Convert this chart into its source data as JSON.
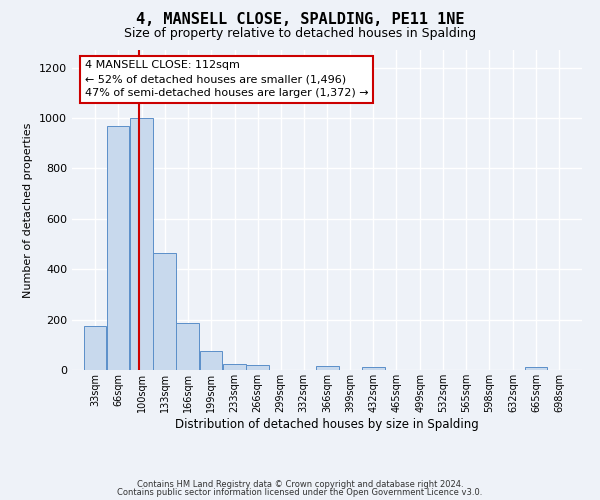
{
  "title": "4, MANSELL CLOSE, SPALDING, PE11 1NE",
  "subtitle": "Size of property relative to detached houses in Spalding",
  "xlabel": "Distribution of detached houses by size in Spalding",
  "ylabel": "Number of detached properties",
  "bin_labels": [
    "33sqm",
    "66sqm",
    "100sqm",
    "133sqm",
    "166sqm",
    "199sqm",
    "233sqm",
    "266sqm",
    "299sqm",
    "332sqm",
    "366sqm",
    "399sqm",
    "432sqm",
    "465sqm",
    "499sqm",
    "532sqm",
    "565sqm",
    "598sqm",
    "632sqm",
    "665sqm",
    "698sqm"
  ],
  "bin_edges": [
    33,
    66,
    100,
    133,
    166,
    199,
    233,
    266,
    299,
    332,
    366,
    399,
    432,
    465,
    499,
    532,
    565,
    598,
    632,
    665,
    698
  ],
  "bar_heights": [
    175,
    970,
    1000,
    465,
    185,
    75,
    25,
    20,
    0,
    0,
    15,
    0,
    10,
    0,
    0,
    0,
    0,
    0,
    0,
    10,
    0
  ],
  "bar_color": "#c8d9ed",
  "bar_edge_color": "#5b8fc9",
  "red_line_x": 112,
  "vline_color": "#cc0000",
  "annotation_line1": "4 MANSELL CLOSE: 112sqm",
  "annotation_line2": "← 52% of detached houses are smaller (1,496)",
  "annotation_line3": "47% of semi-detached houses are larger (1,372) →",
  "annotation_box_color": "#ffffff",
  "annotation_box_edge": "#cc0000",
  "ylim": [
    0,
    1270
  ],
  "yticks": [
    0,
    200,
    400,
    600,
    800,
    1000,
    1200
  ],
  "footer_line1": "Contains HM Land Registry data © Crown copyright and database right 2024.",
  "footer_line2": "Contains public sector information licensed under the Open Government Licence v3.0.",
  "bg_color": "#eef2f8",
  "grid_color": "#ffffff",
  "title_fontsize": 11,
  "subtitle_fontsize": 9,
  "annotation_fontsize": 8
}
